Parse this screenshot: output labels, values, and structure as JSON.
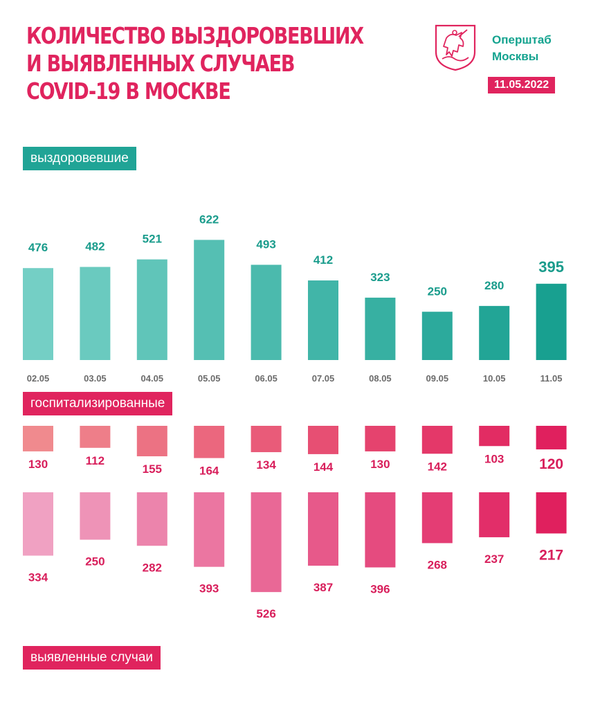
{
  "header": {
    "title_lines": [
      "КОЛИЧЕСТВО ВЫЗДОРОВЕВШИХ",
      "И ВЫЯВЛЕННЫХ СЛУЧАЕВ",
      "COVID-19 В МОСКВЕ"
    ],
    "brand_lines": [
      "Оперштаб",
      "Москвы"
    ],
    "date": "11.05.2022",
    "emblem_icon": "moscow-coat-of-arms-icon"
  },
  "colors": {
    "title": "#e0245e",
    "recovered_light": "#74cfc5",
    "recovered_dark": "#18a090",
    "recovered_text": "#1a9c8c",
    "hosp_light": "#f08a8e",
    "hosp_dark": "#e0205e",
    "cases_light": "#f0a1c2",
    "cases_dark": "#e0205e",
    "pink_text": "#d81e5b",
    "date_text": "#6b6b6b"
  },
  "chart_data": [
    {
      "type": "bar",
      "title": "выздоровевшие",
      "categories": [
        "02.05",
        "03.05",
        "04.05",
        "05.05",
        "06.05",
        "07.05",
        "08.05",
        "09.05",
        "10.05",
        "11.05"
      ],
      "values": [
        476,
        482,
        521,
        622,
        493,
        412,
        323,
        250,
        280,
        395
      ]
    },
    {
      "type": "bar",
      "title": "госпитализированные",
      "categories": [
        "02.05",
        "03.05",
        "04.05",
        "05.05",
        "06.05",
        "07.05",
        "08.05",
        "09.05",
        "10.05",
        "11.05"
      ],
      "values": [
        130,
        112,
        155,
        164,
        134,
        144,
        130,
        142,
        103,
        120
      ]
    },
    {
      "type": "bar",
      "title": "выявленные случаи",
      "categories": [
        "02.05",
        "03.05",
        "04.05",
        "05.05",
        "06.05",
        "07.05",
        "08.05",
        "09.05",
        "10.05",
        "11.05"
      ],
      "values": [
        334,
        250,
        282,
        393,
        526,
        387,
        396,
        268,
        237,
        217
      ]
    }
  ]
}
